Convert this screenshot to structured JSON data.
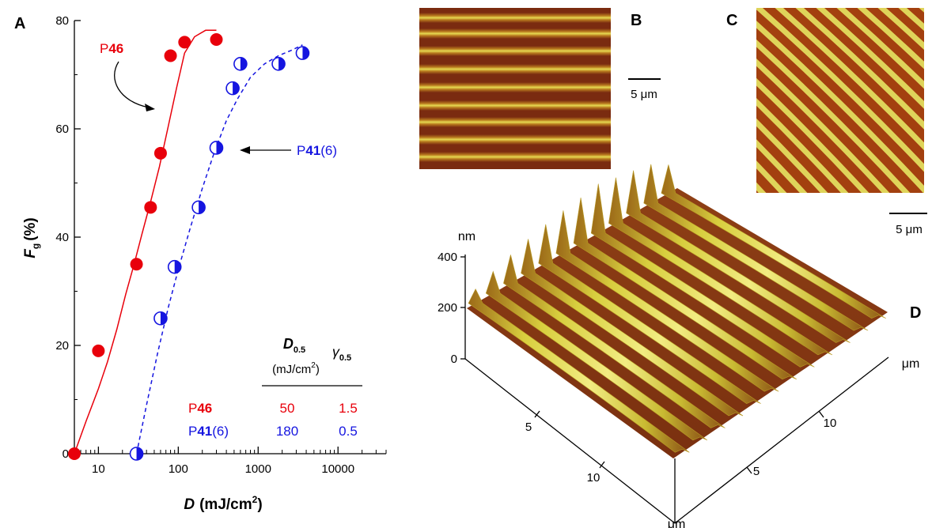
{
  "panels": {
    "a": "A",
    "b": "B",
    "c": "C",
    "d": "D"
  },
  "scale_bars": {
    "b": "5 μm",
    "c": "5 μm"
  },
  "chart_data": [
    {
      "type": "scatter",
      "panel": "A",
      "xlabel": "D (mJ/cm²)",
      "xlabel_var": "D",
      "xlabel_unit": "(mJ/cm",
      "xlabel_sup": "2",
      "xlabel_close": ")",
      "ylabel": "Fg (%)",
      "ylabel_var": "F",
      "ylabel_sub": "g",
      "ylabel_unit": "(%)",
      "xscale": "log",
      "xlim": [
        5,
        40000
      ],
      "ylim": [
        0,
        80
      ],
      "xticks": [
        10,
        100,
        1000,
        10000
      ],
      "xtick_labels": [
        "10",
        "100",
        "1000",
        "10000"
      ],
      "yticks": [
        0,
        20,
        40,
        60,
        80
      ],
      "ytick_labels": [
        "0",
        "20",
        "40",
        "60",
        "80"
      ],
      "grid": false,
      "series": [
        {
          "name": "P46",
          "name_prefix": "P",
          "name_number": "46",
          "color": "#e8000b",
          "marker": "filled-circle",
          "line": "solid",
          "x": [
            5,
            10,
            30,
            45,
            60,
            80,
            120,
            300
          ],
          "y": [
            0,
            19,
            35,
            45.5,
            55.5,
            73.5,
            76,
            76.5
          ],
          "fit_x": [
            5,
            7,
            10,
            13,
            17,
            22,
            28,
            35,
            45,
            58,
            75,
            95,
            120,
            160,
            220,
            300
          ],
          "fit_y": [
            0,
            6,
            12,
            17,
            23,
            29.5,
            35,
            40.5,
            46.5,
            53,
            60.5,
            67.5,
            74,
            77,
            78.2,
            78.2
          ]
        },
        {
          "name": "P41(6)",
          "name_prefix": "P",
          "name_number": "41",
          "name_suffix": "(6)",
          "color": "#1515e0",
          "marker": "half-filled-circle",
          "line": "dashed",
          "x": [
            30,
            60,
            90,
            180,
            300,
            480,
            600,
            1800,
            3600
          ],
          "y": [
            0,
            25,
            34.5,
            45.5,
            56.5,
            67.5,
            72,
            72,
            74
          ],
          "fit_x": [
            30,
            40,
            55,
            75,
            100,
            140,
            200,
            280,
            400,
            550,
            800,
            1200,
            1800,
            2600,
            3600
          ],
          "fit_y": [
            0,
            9,
            18.5,
            27,
            34,
            41.5,
            49,
            55.5,
            61.5,
            65.5,
            69.5,
            72,
            73.5,
            74.5,
            75.5
          ]
        }
      ],
      "annotations": [
        {
          "text": "P46",
          "prefix": "P",
          "number": "46",
          "series": "P46"
        },
        {
          "text": "P41(6)",
          "prefix": "P",
          "number": "41",
          "suffix": "(6)",
          "series": "P41(6)"
        }
      ],
      "table": {
        "header_d_var": "D",
        "header_d_sub": "0.5",
        "header_d_unit": "(mJ/cm",
        "header_d_sup": "2",
        "header_d_close": ")",
        "header_g_var": "γ",
        "header_g_sub": "0.5",
        "rows": [
          {
            "prefix": "P",
            "number": "46",
            "suffix": "",
            "d": "50",
            "g": "1.5",
            "color": "#e8000b"
          },
          {
            "prefix": "P",
            "number": "41",
            "suffix": "(6)",
            "d": "180",
            "g": "0.5",
            "color": "#1515e0"
          }
        ]
      }
    },
    {
      "type": "surface",
      "panel": "D",
      "zlabel": "nm",
      "zticks": [
        0,
        200,
        400
      ],
      "ztick_labels": [
        "0",
        "200",
        "400"
      ],
      "xlabel": "μm",
      "xtick_labels": [
        "5",
        "10"
      ],
      "ylabel": "μm",
      "ytick_labels": [
        "5",
        "10"
      ],
      "colors": {
        "base": "#8a3a12",
        "ridge": "#d6cf3a",
        "ridge_highlight": "#f0ea78"
      }
    }
  ],
  "afm_images": {
    "b": {
      "orientation": "horizontal",
      "dark": "#7a2b10",
      "light": "#e2d64c",
      "mid": "#b07a1c"
    },
    "c": {
      "orientation": "diagonal",
      "dark": "#a3400f",
      "light": "#dfd45a"
    }
  }
}
